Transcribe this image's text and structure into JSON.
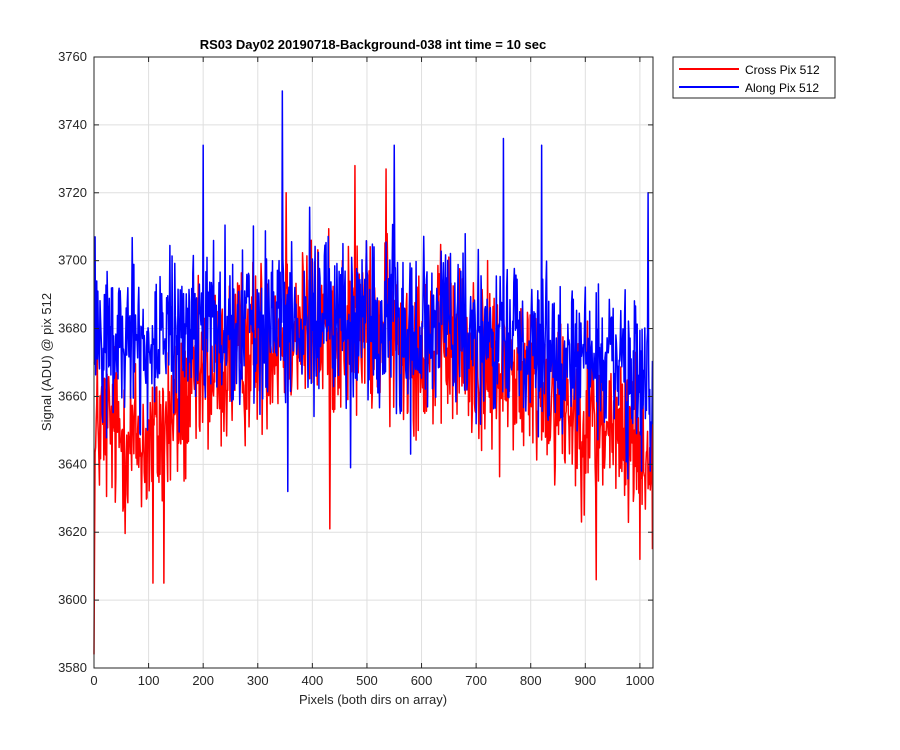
{
  "chart_data": {
    "type": "line",
    "title": "RS03 Day02 20190718-Background-038 int time = 10 sec",
    "xlabel": "Pixels (both dirs on array)",
    "ylabel": "Signal (ADU) @ pix 512",
    "xlim": [
      0,
      1024
    ],
    "ylim": [
      3580,
      3760
    ],
    "xticks": [
      0,
      100,
      200,
      300,
      400,
      500,
      600,
      700,
      800,
      900,
      1000
    ],
    "yticks": [
      3580,
      3600,
      3620,
      3640,
      3660,
      3680,
      3700,
      3720,
      3740,
      3760
    ],
    "grid": true,
    "legend_position": "outside-top-right",
    "series": [
      {
        "name": "Cross Pix 512",
        "color": "#ff0000",
        "profile": {
          "x": [
            0,
            2,
            5,
            10,
            30,
            60,
            100,
            150,
            200,
            250,
            300,
            350,
            400,
            450,
            500,
            550,
            600,
            650,
            700,
            750,
            800,
            850,
            900,
            950,
            1000,
            1023
          ],
          "y": [
            3584,
            3640,
            3650,
            3652,
            3650,
            3648,
            3645,
            3655,
            3665,
            3670,
            3675,
            3680,
            3680,
            3680,
            3680,
            3678,
            3676,
            3675,
            3670,
            3668,
            3665,
            3660,
            3655,
            3650,
            3648,
            3640
          ]
        },
        "noise_amplitude": 14,
        "peaks": [
          {
            "x": 108,
            "y": 3605
          },
          {
            "x": 128,
            "y": 3605
          },
          {
            "x": 352,
            "y": 3720
          },
          {
            "x": 432,
            "y": 3621
          },
          {
            "x": 478,
            "y": 3728
          },
          {
            "x": 535,
            "y": 3727
          },
          {
            "x": 920,
            "y": 3606
          },
          {
            "x": 1000,
            "y": 3612
          },
          {
            "x": 1023,
            "y": 3615
          }
        ]
      },
      {
        "name": "Along Pix 512",
        "color": "#0000ff",
        "profile": {
          "x": [
            0,
            5,
            30,
            60,
            100,
            150,
            200,
            250,
            300,
            350,
            400,
            450,
            500,
            550,
            600,
            650,
            700,
            750,
            800,
            850,
            900,
            950,
            1000,
            1023
          ],
          "y": [
            3670,
            3678,
            3675,
            3676,
            3676,
            3678,
            3680,
            3682,
            3683,
            3684,
            3684,
            3683,
            3683,
            3682,
            3681,
            3680,
            3678,
            3676,
            3674,
            3672,
            3670,
            3668,
            3666,
            3660
          ]
        },
        "noise_amplitude": 13,
        "peaks": [
          {
            "x": 2,
            "y": 3707
          },
          {
            "x": 200,
            "y": 3734
          },
          {
            "x": 345,
            "y": 3750
          },
          {
            "x": 355,
            "y": 3632
          },
          {
            "x": 470,
            "y": 3639
          },
          {
            "x": 550,
            "y": 3734
          },
          {
            "x": 580,
            "y": 3643
          },
          {
            "x": 750,
            "y": 3736
          },
          {
            "x": 820,
            "y": 3734
          },
          {
            "x": 1015,
            "y": 3720
          },
          {
            "x": 1022,
            "y": 3652
          }
        ]
      }
    ]
  }
}
